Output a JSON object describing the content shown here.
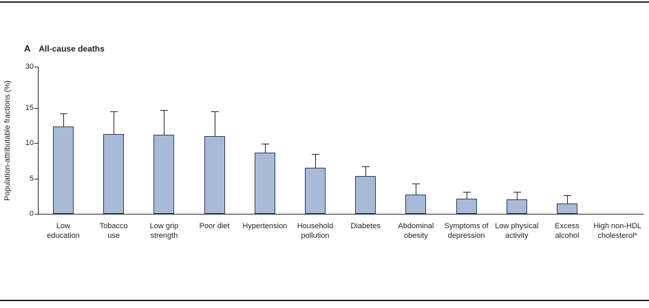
{
  "figure": {
    "panel_label": "A",
    "title": "All-cause deaths"
  },
  "chart_data": {
    "type": "bar",
    "title": "All-cause deaths",
    "xlabel": "",
    "ylabel": "Population-attributable fractions (%)",
    "grid": false,
    "legend": "none",
    "bar_color": "#a9bad8",
    "bar_border_color": "#2b3a5c",
    "error_bar_color": "#231f20",
    "categories": [
      "Low education",
      "Tobacco use",
      "Low grip strength",
      "Poor diet",
      "Hypertension",
      "Household pollution",
      "Diabetes",
      "Abdominal obesity",
      "Symptoms of depression",
      "Low physical activity",
      "Excess alcohol",
      "High non-HDL cholesterol*"
    ],
    "category_lines": [
      [
        "Low",
        "education"
      ],
      [
        "Tobacco",
        "use"
      ],
      [
        "Low grip",
        "strength"
      ],
      [
        "Poor diet"
      ],
      [
        "Hypertension"
      ],
      [
        "Household",
        "pollution"
      ],
      [
        "Diabetes"
      ],
      [
        "Abdominal",
        "obesity"
      ],
      [
        "Symptoms of",
        "depression"
      ],
      [
        "Low physical",
        "activity"
      ],
      [
        "Excess",
        "alcohol"
      ],
      [
        "High non-HDL",
        "cholesterol*"
      ]
    ],
    "values": [
      12.4,
      11.3,
      11.2,
      11.0,
      8.7,
      6.5,
      5.4,
      2.7,
      2.1,
      2.0,
      1.5,
      0
    ],
    "ci_upper": [
      14.2,
      14.5,
      14.7,
      14.5,
      9.9,
      8.5,
      6.7,
      4.3,
      3.1,
      3.1,
      2.6,
      0
    ],
    "y_ticks_linear": [
      0,
      5,
      10,
      15
    ],
    "y_top_tick_label": "30",
    "ylim_linear": [
      0,
      15
    ],
    "axis_note": "y axis compressed above 15; top of axis tick labeled 30"
  }
}
